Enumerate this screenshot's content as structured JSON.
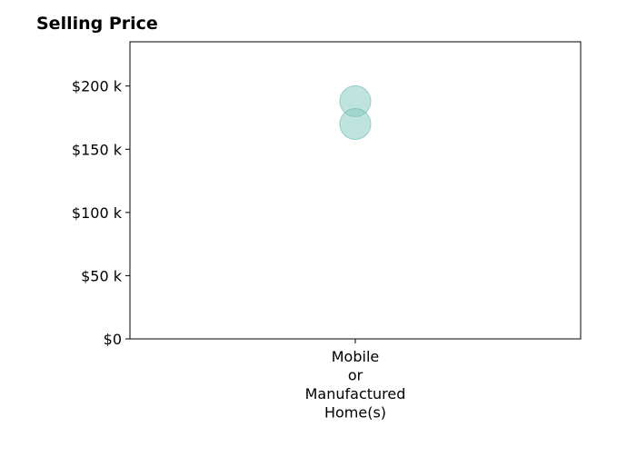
{
  "chart_data": {
    "type": "scatter",
    "title": "Selling Price",
    "xlabel": "",
    "ylabel": "",
    "categories": [
      "Mobile or Manufactured Home(s)"
    ],
    "category_label_lines": [
      [
        "Mobile",
        "or",
        "Manufactured",
        "Home(s)"
      ]
    ],
    "points": [
      {
        "category": "Mobile or Manufactured Home(s)",
        "y": 188000
      },
      {
        "category": "Mobile or Manufactured Home(s)",
        "y": 170000
      }
    ],
    "ylim": [
      0,
      235000
    ],
    "yticks": [
      {
        "value": 0,
        "label": "$0"
      },
      {
        "value": 50000,
        "label": "$50 k"
      },
      {
        "value": 100000,
        "label": "$100 k"
      },
      {
        "value": 150000,
        "label": "$150 k"
      },
      {
        "value": 200000,
        "label": "$200 k"
      }
    ],
    "grid": false,
    "point_color": "#7fc7bd",
    "point_edge_color": "#66b8ad"
  }
}
